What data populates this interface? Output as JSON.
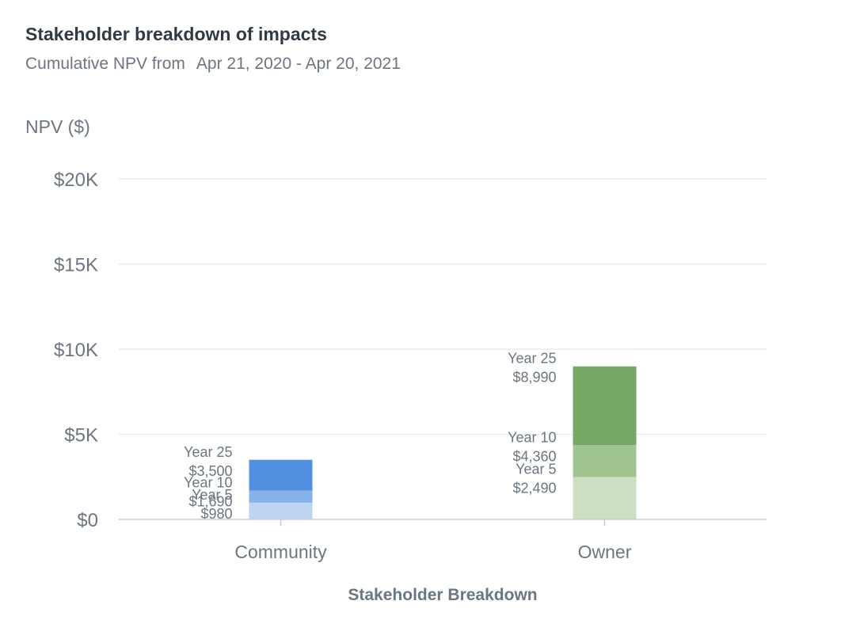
{
  "title": "Stakeholder breakdown of impacts",
  "subtitle_prefix": "Cumulative NPV from",
  "subtitle_range": "Apr 21, 2020 - Apr 20, 2021",
  "chart_data": {
    "type": "bar",
    "stacked": true,
    "ylabel": "NPV ($)",
    "xlabel": "Stakeholder Breakdown",
    "ylim": [
      0,
      20000
    ],
    "yticks": [
      0,
      5000,
      10000,
      15000,
      20000
    ],
    "ytick_labels": [
      "$0",
      "$5K",
      "$10K",
      "$15K",
      "$20K"
    ],
    "grid": true,
    "categories": [
      {
        "name": "Community",
        "segments": [
          {
            "label": "Year 5",
            "value": 980,
            "value_label": "$980",
            "color": "#bcd5f3"
          },
          {
            "label": "Year 10",
            "value": 1690,
            "value_label": "$1,690",
            "color": "#86b2e8"
          },
          {
            "label": "Year 25",
            "value": 3500,
            "value_label": "$3,500",
            "color": "#5190df"
          }
        ]
      },
      {
        "name": "Owner",
        "segments": [
          {
            "label": "Year 5",
            "value": 2490,
            "value_label": "$2,490",
            "color": "#cde0c4"
          },
          {
            "label": "Year 10",
            "value": 4360,
            "value_label": "$4,360",
            "color": "#a1c591"
          },
          {
            "label": "Year 25",
            "value": 8990,
            "value_label": "$8,990",
            "color": "#76a866"
          }
        ]
      }
    ]
  }
}
